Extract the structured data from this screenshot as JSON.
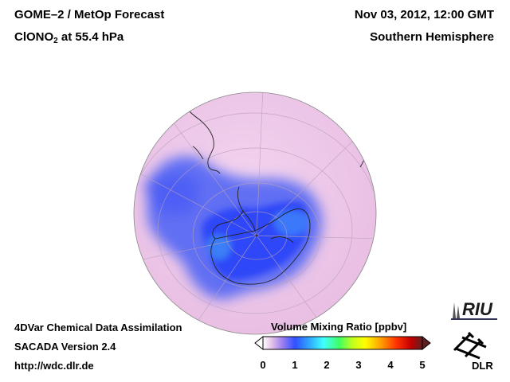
{
  "header": {
    "title_line1": "GOME–2 / MetOp Forecast",
    "species_prefix": "ClONO",
    "species_sub": "2",
    "species_suffix": " at 55.4 hPa",
    "date": "Nov 03, 2012, 12:00 GMT",
    "region": "Southern Hemisphere"
  },
  "footer": {
    "line1": "4DVar Chemical Data Assimilation",
    "line2": "SACADA Version 2.4",
    "line3": "http://wdc.dlr.de"
  },
  "colorbar": {
    "title": "Volume Mixing Ratio [ppbv]",
    "ticks": [
      "0",
      "1",
      "2",
      "3",
      "4",
      "5"
    ],
    "min": 0,
    "max": 5,
    "colors": [
      "#ffffff",
      "#e8c8e8",
      "#a080f0",
      "#3050ff",
      "#30b0ff",
      "#40ffff",
      "#40ff60",
      "#c0ff20",
      "#ffff00",
      "#ffa000",
      "#ff3000",
      "#c00000",
      "#602020"
    ]
  },
  "logos": {
    "riu": "RIU",
    "dlr": "DLR"
  },
  "colors": {
    "background_pink": "#efc9ea",
    "low_blue": "#3a5af5"
  }
}
